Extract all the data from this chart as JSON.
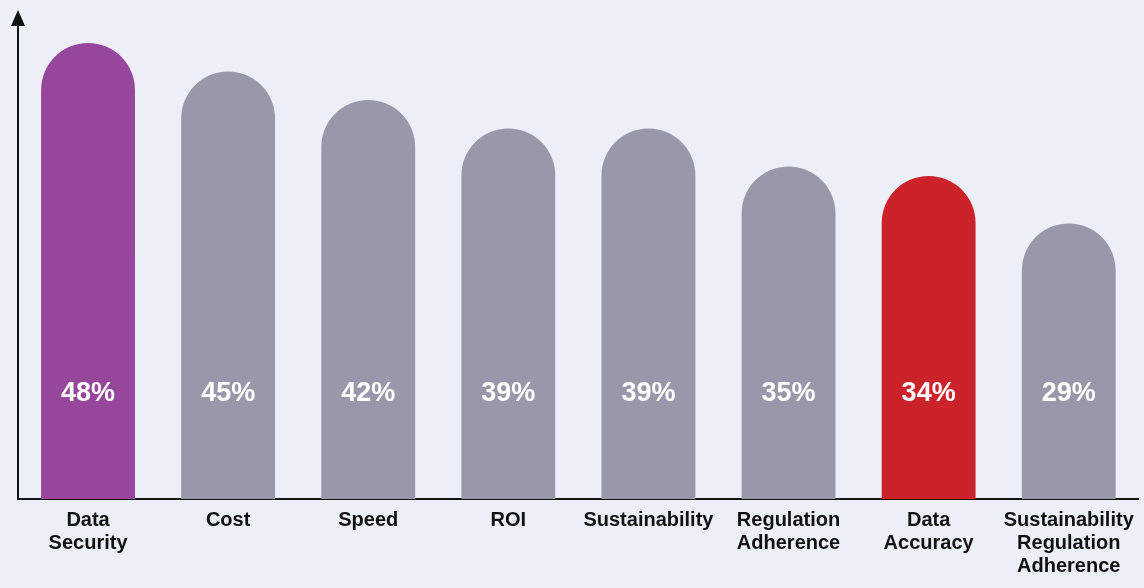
{
  "chart_data": {
    "type": "bar",
    "categories": [
      "Data Security",
      "Cost",
      "Speed",
      "ROI",
      "Sustainability",
      "Regulation Adherence",
      "Data Accuracy",
      "Sustainability Regulation Adherence"
    ],
    "values": [
      48,
      45,
      42,
      39,
      39,
      35,
      34,
      29
    ],
    "colors": [
      "#96479b",
      "#9a97aa",
      "#9a97aa",
      "#9a97aa",
      "#9a97aa",
      "#9a97aa",
      "#cc2229",
      "#9a97aa"
    ],
    "value_labels": [
      "48%",
      "45%",
      "42%",
      "39%",
      "39%",
      "35%",
      "34%",
      "29%"
    ],
    "tick_labels": "x",
    "grid": false,
    "legend": false
  }
}
